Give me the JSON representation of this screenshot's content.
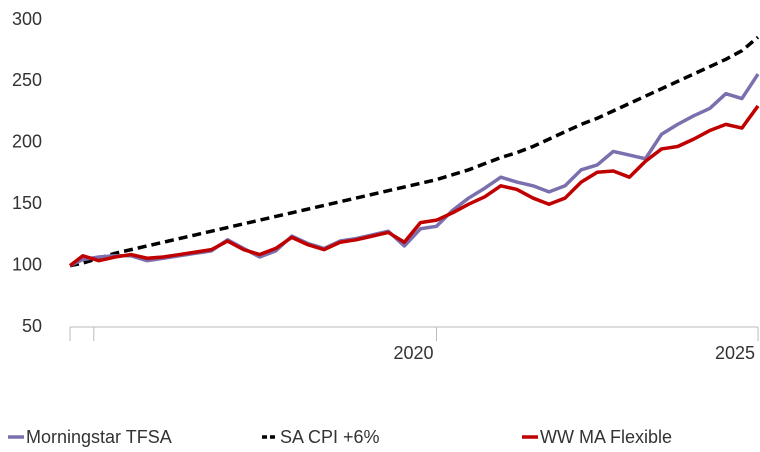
{
  "chart_data": {
    "type": "line",
    "x": [
      2014.3,
      2014.5,
      2014.75,
      2015,
      2015.25,
      2015.5,
      2015.75,
      2016,
      2016.25,
      2016.5,
      2016.75,
      2017,
      2017.25,
      2017.5,
      2017.75,
      2018,
      2018.25,
      2018.5,
      2018.75,
      2019,
      2019.25,
      2019.5,
      2019.75,
      2020,
      2020.25,
      2020.5,
      2020.75,
      2021,
      2021.25,
      2021.5,
      2021.75,
      2022,
      2022.25,
      2022.5,
      2022.75,
      2023,
      2023.25,
      2023.5,
      2023.75,
      2024,
      2024.25,
      2024.5,
      2024.75,
      2025
    ],
    "series": [
      {
        "name": "Morningstar TFSA",
        "color": "#7b6fae",
        "dash": false,
        "values": [
          100,
          105,
          107,
          108,
          108,
          104,
          106,
          108,
          110,
          112,
          121,
          114,
          107,
          112,
          124,
          118,
          114,
          120,
          122,
          125,
          128,
          116,
          130,
          132,
          145,
          155,
          163,
          172,
          168,
          165,
          160,
          165,
          178,
          182,
          193,
          190,
          187,
          207,
          215,
          222,
          228,
          240,
          236,
          256
        ]
      },
      {
        "name": "SA CPI +6%",
        "color": "#000000",
        "dash": true,
        "values": [
          100,
          102,
          106,
          110,
          113,
          116,
          119,
          122,
          125,
          128,
          131,
          134,
          137,
          140,
          143,
          146,
          149,
          152,
          155,
          158,
          161,
          164,
          167,
          170,
          174,
          178,
          183,
          188,
          192,
          197,
          203,
          209,
          215,
          220,
          226,
          232,
          238,
          244,
          250,
          256,
          262,
          268,
          275,
          286
        ]
      },
      {
        "name": "WW MA Flexible",
        "color": "#c00000",
        "dash": false,
        "values": [
          100,
          108,
          104,
          107,
          109,
          106,
          107,
          109,
          111,
          113,
          120,
          113,
          109,
          114,
          123,
          117,
          113,
          119,
          121,
          124,
          127,
          119,
          135,
          137,
          143,
          150,
          156,
          165,
          162,
          155,
          150,
          155,
          168,
          176,
          177,
          172,
          185,
          195,
          197,
          203,
          210,
          215,
          212,
          230
        ]
      }
    ],
    "xlim": [
      2014.3,
      2025
    ],
    "xticks": [
      2020,
      2025
    ],
    "xminorticks": [
      2014.3,
      2014.67
    ],
    "ylim": [
      50,
      300
    ],
    "yticks": [
      50,
      100,
      150,
      200,
      250,
      300
    ],
    "grid": false
  }
}
